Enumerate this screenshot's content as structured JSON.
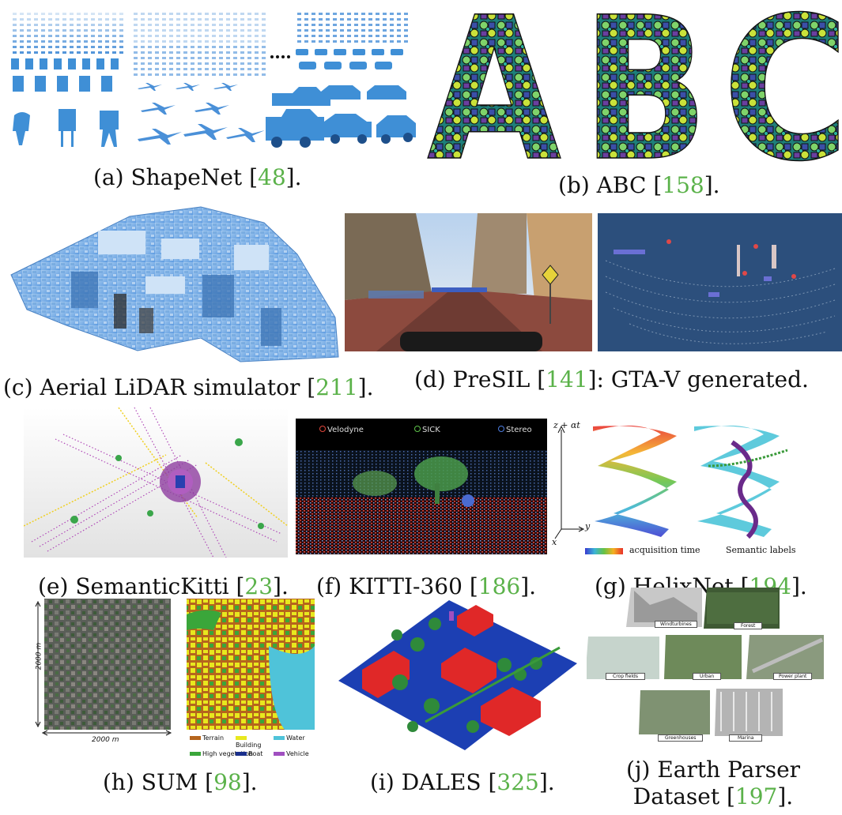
{
  "captions": {
    "a": {
      "prefix": "(a) ShapeNet [",
      "ref": "48",
      "suffix": "]."
    },
    "b": {
      "prefix": "(b) ABC [",
      "ref": "158",
      "suffix": "]."
    },
    "c": {
      "prefix": "(c) Aerial LiDAR simulator [",
      "ref": "211",
      "suffix": "]."
    },
    "d": {
      "prefix": "(d) PreSIL [",
      "ref": "141",
      "suffix": "]: GTA-V generated."
    },
    "e": {
      "prefix": "(e) SemanticKitti [",
      "ref": "23",
      "suffix": "]."
    },
    "f": {
      "prefix": "(f) KITTI-360 [",
      "ref": "186",
      "suffix": "]."
    },
    "g": {
      "prefix": "(g) HelixNet [",
      "ref": "194",
      "suffix": "]."
    },
    "h": {
      "prefix": "(h) SUM [",
      "ref": "98",
      "suffix": "]."
    },
    "i": {
      "prefix": "(i) DALES [",
      "ref": "325",
      "suffix": "]."
    },
    "j": {
      "line1": "(j) Earth Parser",
      "prefix": "Dataset [",
      "ref": "197",
      "suffix": "]."
    }
  },
  "abc": {
    "letters": [
      "A",
      "B",
      "C"
    ]
  },
  "kitti360": {
    "legend": [
      "Velodyne",
      "SICK",
      "Stereo"
    ],
    "legend_colors": [
      "#e0453a",
      "#5ec24a",
      "#4d7de0"
    ]
  },
  "helixnet": {
    "axis_z": "z + αt",
    "axis_y": "y",
    "axis_x": "x",
    "colorbar_label": "acquisition time",
    "semantic_label": "Semantic labels"
  },
  "sum": {
    "dim_vertical": "2000 m",
    "dim_horizontal": "2000 m",
    "legend": [
      {
        "name": "Terrain",
        "color": "#b5651d"
      },
      {
        "name": "Building",
        "color": "#e8e81e"
      },
      {
        "name": "Water",
        "color": "#4fc3d9"
      },
      {
        "name": "High vegetation",
        "color": "#3aa63a"
      },
      {
        "name": "Boat",
        "color": "#1a2f8c"
      },
      {
        "name": "Vehicle",
        "color": "#a04fc0"
      }
    ]
  },
  "earth_parser": {
    "tiles": [
      "Windturbines",
      "Forest",
      "Crop fields",
      "Urban",
      "Power plant",
      "Greenhouses",
      "Marina"
    ]
  },
  "colors": {
    "citation": "#5bb24a",
    "shape_blue": "#3f8fd6",
    "dales_red": "#e02828",
    "dales_blue": "#1c3fb3",
    "dales_green": "#2f8a3a"
  }
}
